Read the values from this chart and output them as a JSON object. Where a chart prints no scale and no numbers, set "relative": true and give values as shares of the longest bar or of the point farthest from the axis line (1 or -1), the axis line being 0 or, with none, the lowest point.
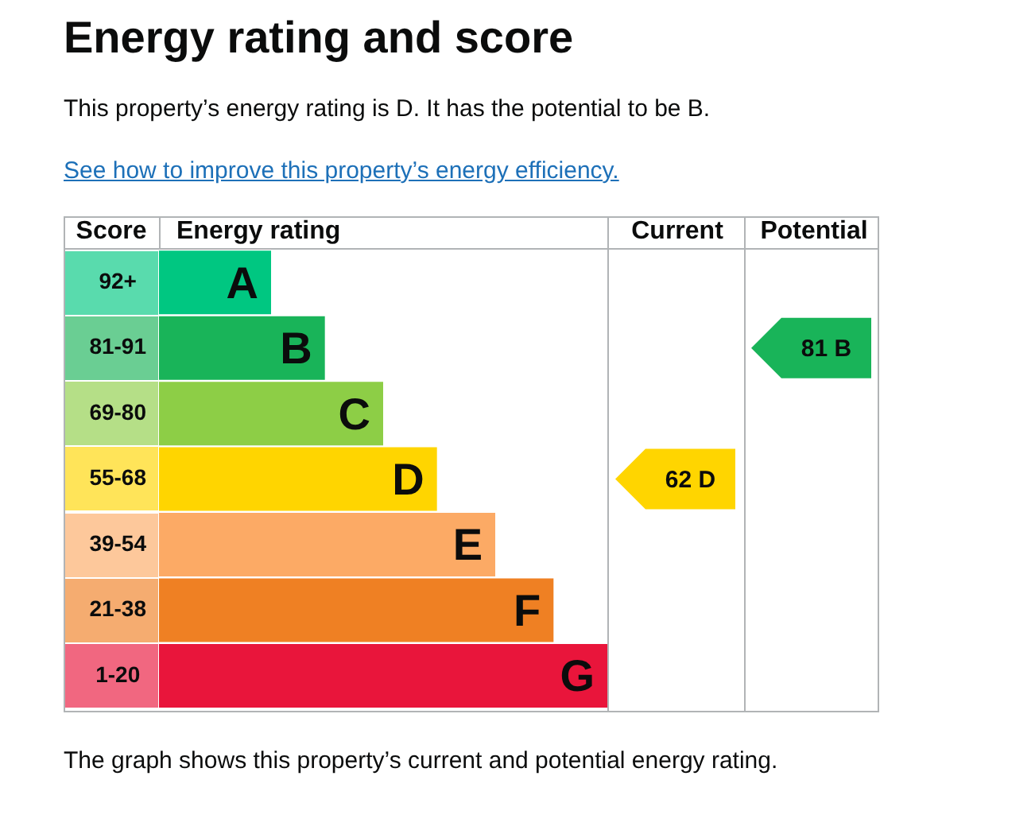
{
  "chart_data": {
    "type": "bar",
    "orientation": "horizontal",
    "relative": true,
    "title": "Energy rating and score",
    "subtitle": "This property’s energy rating is D. It has the potential to be B.",
    "ylabel": "Score",
    "xlabel": "Energy rating",
    "categories": [
      "92+",
      "81-91",
      "69-80",
      "55-68",
      "39-54",
      "21-38",
      "1-20"
    ],
    "values": [
      0.25,
      0.37,
      0.5,
      0.62,
      0.75,
      0.88,
      1
    ],
    "colors": [
      "#00c781",
      "#19b459",
      "#8dce46",
      "#ffd500",
      "#fcaa65",
      "#ef8023",
      "#e9153b"
    ],
    "annotations": [
      "See how to improve this property’s energy efficiency.",
      "Current",
      "Potential",
      "A",
      "B",
      "C",
      "D",
      "E",
      "F",
      "G",
      "62 D",
      "81 B",
      "The graph shows this property’s current and potential energy rating."
    ]
  }
}
